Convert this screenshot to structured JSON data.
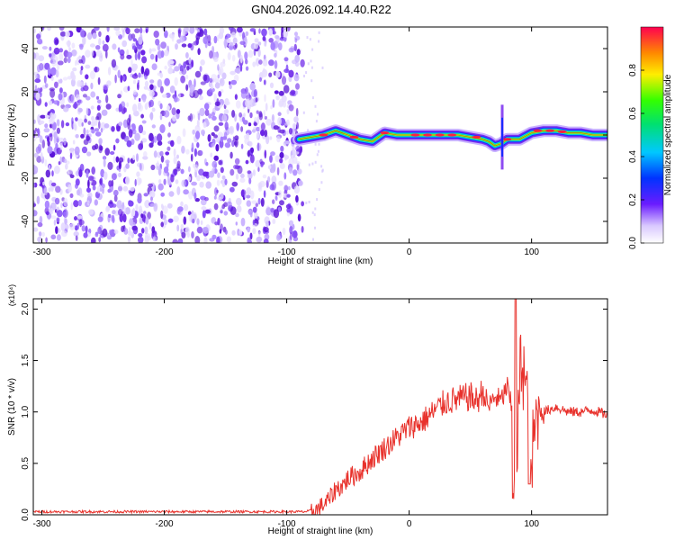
{
  "title": "GN04.2026.092.14.40.R22",
  "colors": {
    "snr_line": "#e8322c",
    "spectrogram_noise": "#7a2cf0",
    "frame": "#000000"
  },
  "chart_data": [
    {
      "type": "heatmap",
      "title": "GN04.2026.092.14.40.R22",
      "xlabel": "Height of straight line (km)",
      "ylabel": "Frequency (Hz)",
      "xlim": [
        -307,
        162
      ],
      "ylim": [
        -50,
        50
      ],
      "x_ticks": [
        -300,
        -200,
        -100,
        0,
        100
      ],
      "y_ticks": [
        -40,
        -20,
        0,
        20,
        40
      ],
      "colorbar": {
        "label": "Normalized spectral amplitude",
        "range": [
          0,
          1
        ],
        "ticks": [
          "0.0",
          "0.2",
          "0.4",
          "0.6",
          "0.8"
        ],
        "colormap": "rainbow"
      },
      "noise_region": {
        "x_range": [
          -307,
          -87
        ]
      },
      "signal_track": {
        "x": [
          -90,
          -80,
          -70,
          -60,
          -50,
          -40,
          -30,
          -20,
          -10,
          0,
          10,
          20,
          30,
          40,
          50,
          60,
          65,
          70,
          75,
          80,
          90,
          100,
          110,
          120,
          130,
          140,
          150,
          162
        ],
        "freq": [
          -2,
          -1,
          0,
          2,
          0,
          -2,
          -3,
          1,
          0,
          0,
          0,
          0,
          0,
          0,
          -1,
          -2,
          -3,
          -5,
          -4,
          -2,
          -2,
          1,
          2,
          2,
          1,
          1,
          0,
          0
        ]
      }
    },
    {
      "type": "line",
      "title": "",
      "xlabel": "Height of straight line (km)",
      "ylabel": "SNR (10 * v/v)",
      "y_multiplier": "(x10⁴)",
      "xlim": [
        -307,
        162
      ],
      "ylim": [
        0,
        2.1
      ],
      "x_ticks": [
        -300,
        -200,
        -100,
        0,
        100
      ],
      "y_ticks": [
        "0.0",
        "0.5",
        "1.0",
        "1.5",
        "2.0"
      ],
      "series": [
        {
          "x": [
            -307,
            -250,
            -200,
            -150,
            -100,
            -85,
            -75,
            -65,
            -60,
            -55,
            -50,
            -40,
            -30,
            -20,
            -10,
            0,
            10,
            20,
            30,
            40,
            50,
            55,
            60,
            65,
            70,
            75,
            80,
            85,
            88,
            90,
            92,
            95,
            100,
            105,
            110,
            120,
            130,
            140,
            150,
            162
          ],
          "values": [
            0.03,
            0.03,
            0.03,
            0.03,
            0.03,
            0.03,
            0.05,
            0.15,
            0.25,
            0.28,
            0.35,
            0.42,
            0.55,
            0.65,
            0.75,
            0.85,
            0.9,
            1.0,
            1.1,
            1.12,
            1.15,
            1.1,
            1.2,
            1.05,
            1.15,
            1.1,
            1.25,
            0.95,
            0.5,
            1.2,
            1.6,
            1.25,
            0.5,
            1.05,
            1.0,
            1.05,
            1.0,
            1.0,
            1.02,
            0.97
          ]
        }
      ]
    }
  ]
}
